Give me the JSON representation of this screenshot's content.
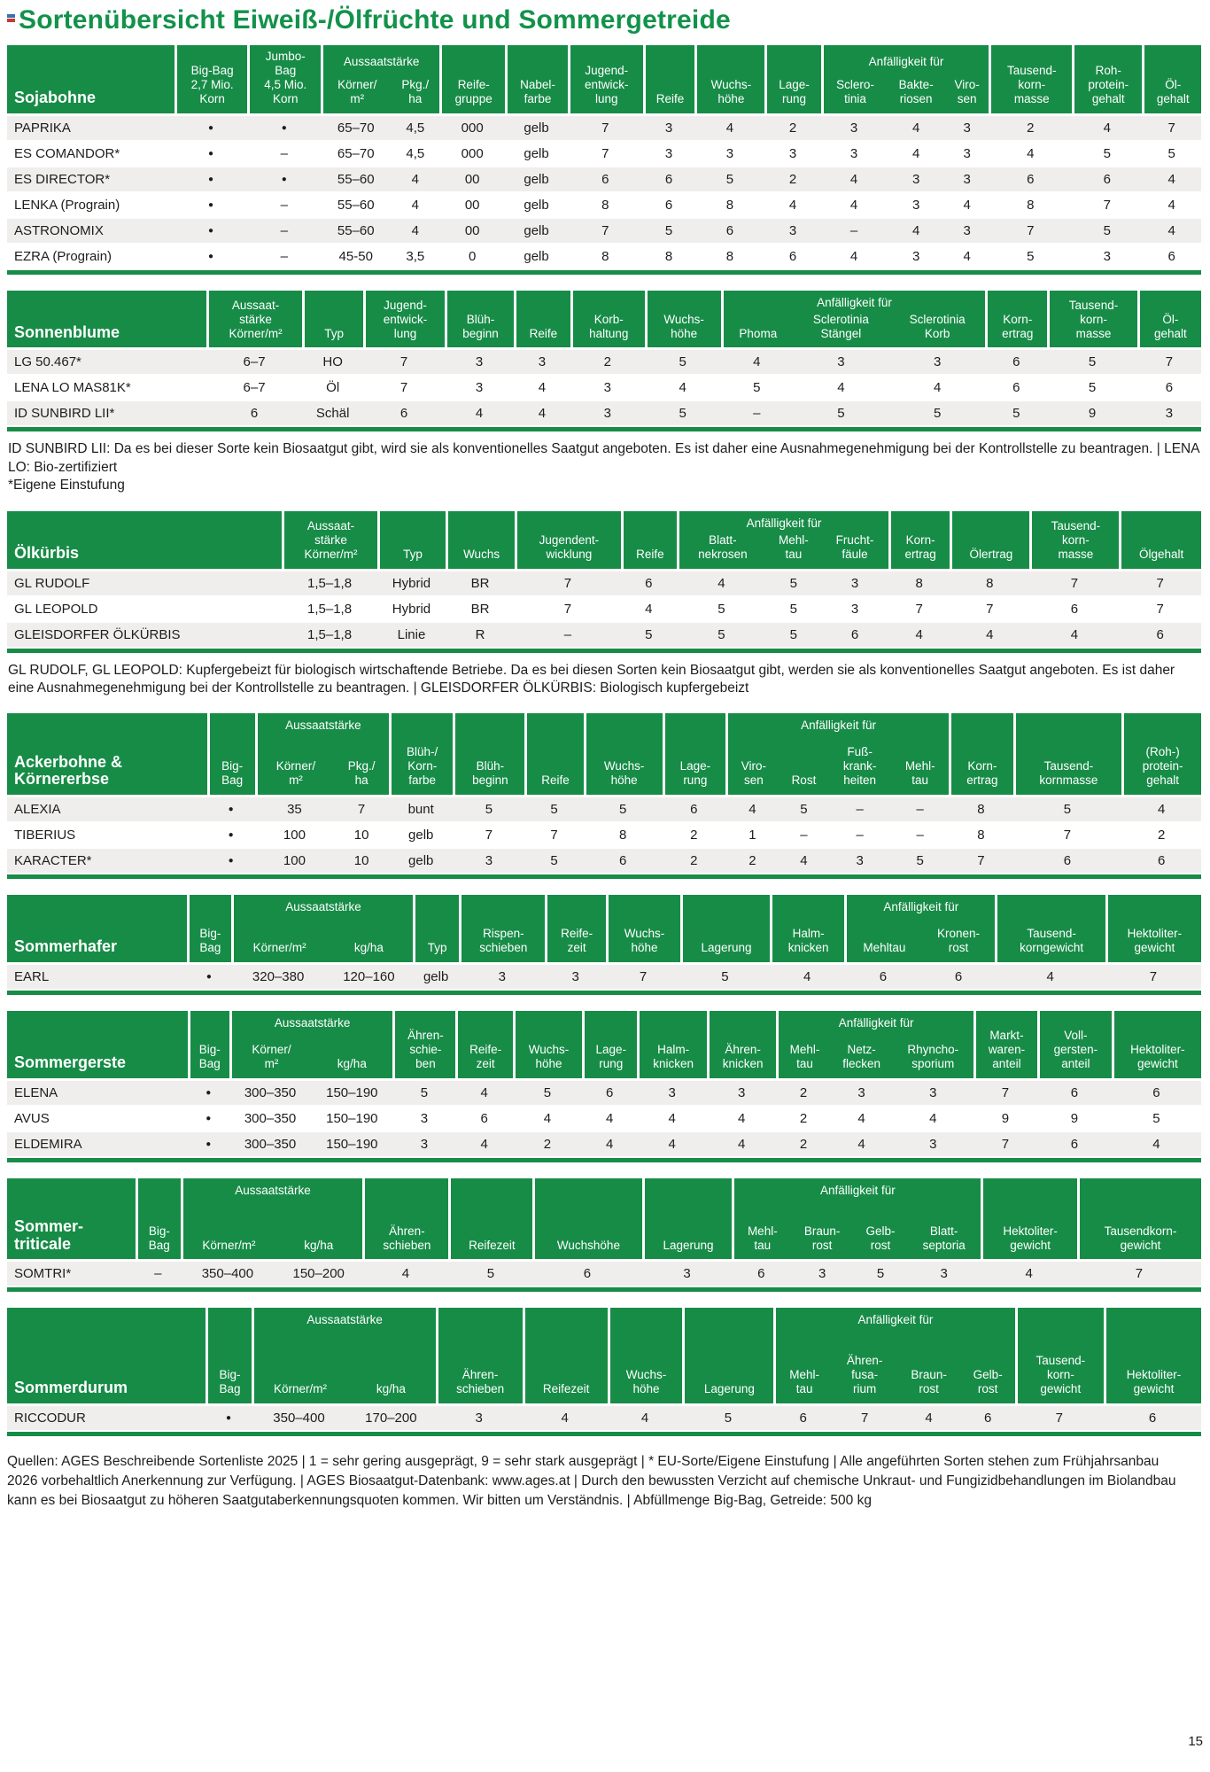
{
  "title": "Sortenübersicht Eiweiß-/Ölfrüchte und Sommergetreide",
  "colors": {
    "green": "#178c47",
    "title_green": "#12924a",
    "row_alt": "#efeeec"
  },
  "icons": {
    "corner_mark": "registration-mark-icon"
  },
  "tables": [
    {
      "id": "sojabohne",
      "name": "Sojabohne",
      "columns": [
        {
          "label": "Big-Bag\n2,7 Mio.\nKorn"
        },
        {
          "label": "Jumbo-\nBag\n4,5 Mio.\nKorn"
        },
        {
          "label": "Körner/\nm²",
          "group": "Aussaatstärke"
        },
        {
          "label": "Pkg./\nha",
          "group": "Aussaatstärke"
        },
        {
          "label": "Reife-\ngruppe"
        },
        {
          "label": "Nabel-\nfarbe"
        },
        {
          "label": "Jugend-\nentwick-\nlung"
        },
        {
          "label": "Reife"
        },
        {
          "label": "Wuchs-\nhöhe"
        },
        {
          "label": "Lage-\nrung"
        },
        {
          "label": "Sclero-\ntinia",
          "group": "Anfälligkeit für"
        },
        {
          "label": "Bakte-\nriosen",
          "group": "Anfälligkeit für"
        },
        {
          "label": "Viro-\nsen",
          "group": "Anfälligkeit für"
        },
        {
          "label": "Tausend-\nkorn-\nmasse"
        },
        {
          "label": "Roh-\nprotein-\ngehalt"
        },
        {
          "label": "Öl-\ngehalt"
        }
      ],
      "rows": [
        [
          "PAPRIKA",
          "●",
          "●",
          "65–70",
          "4,5",
          "000",
          "gelb",
          "7",
          "3",
          "4",
          "2",
          "3",
          "4",
          "3",
          "2",
          "4",
          "7"
        ],
        [
          "ES COMANDOR*",
          "●",
          "–",
          "65–70",
          "4,5",
          "000",
          "gelb",
          "7",
          "3",
          "3",
          "3",
          "3",
          "4",
          "3",
          "4",
          "5",
          "5"
        ],
        [
          "ES DIRECTOR*",
          "●",
          "●",
          "55–60",
          "4",
          "00",
          "gelb",
          "6",
          "6",
          "5",
          "2",
          "4",
          "3",
          "3",
          "6",
          "6",
          "4"
        ],
        [
          "LENKA (Prograin)",
          "●",
          "–",
          "55–60",
          "4",
          "00",
          "gelb",
          "8",
          "6",
          "8",
          "4",
          "4",
          "3",
          "4",
          "8",
          "7",
          "4"
        ],
        [
          "ASTRONOMIX",
          "●",
          "–",
          "55–60",
          "4",
          "00",
          "gelb",
          "7",
          "5",
          "6",
          "3",
          "–",
          "4",
          "3",
          "7",
          "5",
          "4"
        ],
        [
          "EZRA (Prograin)",
          "●",
          "–",
          "45-50",
          "3,5",
          "0",
          "gelb",
          "8",
          "8",
          "8",
          "6",
          "4",
          "3",
          "4",
          "5",
          "3",
          "6"
        ]
      ]
    },
    {
      "id": "sonnenblume",
      "name": "Sonnenblume",
      "columns": [
        {
          "label": "Aussaat-\nstärke\nKörner/m²"
        },
        {
          "label": "Typ"
        },
        {
          "label": "Jugend-\nentwick-\nlung"
        },
        {
          "label": "Blüh-\nbeginn"
        },
        {
          "label": "Reife"
        },
        {
          "label": "Korb-\nhaltung"
        },
        {
          "label": "Wuchs-\nhöhe"
        },
        {
          "label": "Phoma",
          "group": "Anfälligkeit für"
        },
        {
          "label": "Sclerotinia\nStängel",
          "group": "Anfälligkeit für"
        },
        {
          "label": "Sclerotinia\nKorb",
          "group": "Anfälligkeit für"
        },
        {
          "label": "Korn-\nertrag"
        },
        {
          "label": "Tausend-\nkorn-\nmasse"
        },
        {
          "label": "Öl-\ngehalt"
        }
      ],
      "rows": [
        [
          "LG 50.467*",
          "6–7",
          "HO",
          "7",
          "3",
          "3",
          "2",
          "5",
          "4",
          "3",
          "3",
          "6",
          "5",
          "7"
        ],
        [
          "LENA LO MAS81K*",
          "6–7",
          "Öl",
          "7",
          "3",
          "4",
          "3",
          "4",
          "5",
          "4",
          "4",
          "6",
          "5",
          "6"
        ],
        [
          "ID SUNBIRD LII*",
          "6",
          "Schäl",
          "6",
          "4",
          "4",
          "3",
          "5",
          "–",
          "5",
          "5",
          "5",
          "9",
          "3"
        ]
      ],
      "note": "ID SUNBIRD LII: Da es bei dieser Sorte kein Biosaatgut gibt, wird sie als konventionelles Saatgut angeboten. Es ist daher eine Ausnahmegenehmigung bei der Kontrollstelle zu beantragen. | LENA LO: Bio-zertifiziert\n*Eigene Einstufung"
    },
    {
      "id": "oelkuerbis",
      "name": "Ölkürbis",
      "columns": [
        {
          "label": "Aussaat-\nstärke\nKörner/m²"
        },
        {
          "label": "Typ"
        },
        {
          "label": "Wuchs"
        },
        {
          "label": "Jugendent-\nwicklung"
        },
        {
          "label": "Reife"
        },
        {
          "label": "Blatt-\nnekrosen",
          "group": "Anfälligkeit für"
        },
        {
          "label": "Mehl-\ntau",
          "group": "Anfälligkeit für"
        },
        {
          "label": "Frucht-\nfäule",
          "group": "Anfälligkeit für"
        },
        {
          "label": "Korn-\nertrag"
        },
        {
          "label": "Ölertrag"
        },
        {
          "label": "Tausend-\nkorn-\nmasse"
        },
        {
          "label": "Ölgehalt"
        }
      ],
      "rows": [
        [
          "GL RUDOLF",
          "1,5–1,8",
          "Hybrid",
          "BR",
          "7",
          "6",
          "4",
          "5",
          "3",
          "8",
          "8",
          "7",
          "7"
        ],
        [
          "GL LEOPOLD",
          "1,5–1,8",
          "Hybrid",
          "BR",
          "7",
          "4",
          "5",
          "5",
          "3",
          "7",
          "7",
          "6",
          "7"
        ],
        [
          "GLEISDORFER ÖLKÜRBIS",
          "1,5–1,8",
          "Linie",
          "R",
          "–",
          "5",
          "5",
          "5",
          "6",
          "4",
          "4",
          "4",
          "6"
        ]
      ],
      "note": "GL RUDOLF, GL LEOPOLD: Kupfergebeizt für biologisch wirtschaftende Betriebe. Da es bei diesen Sorten kein Biosaatgut gibt, werden sie als konventionelles Saatgut angeboten. Es ist daher eine Ausnahmegenehmigung bei der Kontrollstelle zu beantragen. | GLEISDORFER ÖLKÜRBIS: Biologisch kupfergebeizt"
    },
    {
      "id": "ackerbohne",
      "name": "Ackerbohne &\nKörnererbse",
      "columns": [
        {
          "label": "Big-\nBag"
        },
        {
          "label": "Körner/\nm²",
          "group": "Aussaatstärke"
        },
        {
          "label": "Pkg./\nha",
          "group": "Aussaatstärke"
        },
        {
          "label": "Blüh-/\nKorn-\nfarbe"
        },
        {
          "label": "Blüh-\nbeginn"
        },
        {
          "label": "Reife"
        },
        {
          "label": "Wuchs-\nhöhe"
        },
        {
          "label": "Lage-\nrung"
        },
        {
          "label": "Viro-\nsen",
          "group": "Anfälligkeit für"
        },
        {
          "label": "Rost",
          "group": "Anfälligkeit für"
        },
        {
          "label": "Fuß-\nkrank-\nheiten",
          "group": "Anfälligkeit für"
        },
        {
          "label": "Mehl-\ntau",
          "group": "Anfälligkeit für"
        },
        {
          "label": "Korn-\nertrag"
        },
        {
          "label": "Tausend-\nkornmasse"
        },
        {
          "label": "(Roh-)\nprotein-\ngehalt"
        }
      ],
      "rows": [
        [
          "ALEXIA",
          "●",
          "35",
          "7",
          "bunt",
          "5",
          "5",
          "5",
          "6",
          "4",
          "5",
          "–",
          "–",
          "8",
          "5",
          "4"
        ],
        [
          "TIBERIUS",
          "●",
          "100",
          "10",
          "gelb",
          "7",
          "7",
          "8",
          "2",
          "1",
          "–",
          "–",
          "–",
          "8",
          "7",
          "2"
        ],
        [
          "KARACTER*",
          "●",
          "100",
          "10",
          "gelb",
          "3",
          "5",
          "6",
          "2",
          "2",
          "4",
          "3",
          "5",
          "7",
          "6",
          "6"
        ]
      ]
    },
    {
      "id": "sommerhafer",
      "name": "Sommerhafer",
      "columns": [
        {
          "label": "Big-\nBag"
        },
        {
          "label": "Körner/m²",
          "group": "Aussaatstärke"
        },
        {
          "label": "kg/ha",
          "group": "Aussaatstärke"
        },
        {
          "label": "Typ"
        },
        {
          "label": "Rispen-\nschieben"
        },
        {
          "label": "Reife-\nzeit"
        },
        {
          "label": "Wuchs-\nhöhe"
        },
        {
          "label": "Lagerung"
        },
        {
          "label": "Halm-\nknicken"
        },
        {
          "label": "Mehltau",
          "group": "Anfälligkeit für"
        },
        {
          "label": "Kronen-\nrost",
          "group": "Anfälligkeit für"
        },
        {
          "label": "Tausend-\nkorngewicht"
        },
        {
          "label": "Hektoliter-\ngewicht"
        }
      ],
      "rows": [
        [
          "EARL",
          "●",
          "320–380",
          "120–160",
          "gelb",
          "3",
          "3",
          "7",
          "5",
          "4",
          "6",
          "6",
          "4",
          "7"
        ]
      ]
    },
    {
      "id": "sommergerste",
      "name": "Sommergerste",
      "columns": [
        {
          "label": "Big-\nBag"
        },
        {
          "label": "Körner/\nm²",
          "group": "Aussaatstärke"
        },
        {
          "label": "kg/ha",
          "group": "Aussaatstärke"
        },
        {
          "label": "Ähren-\nschie-\nben"
        },
        {
          "label": "Reife-\nzeit"
        },
        {
          "label": "Wuchs-\nhöhe"
        },
        {
          "label": "Lage-\nrung"
        },
        {
          "label": "Halm-\nknicken"
        },
        {
          "label": "Ähren-\nknicken"
        },
        {
          "label": "Mehl-\ntau",
          "group": "Anfälligkeit für"
        },
        {
          "label": "Netz-\nflecken",
          "group": "Anfälligkeit für"
        },
        {
          "label": "Rhyncho-\nsporium",
          "group": "Anfälligkeit für"
        },
        {
          "label": "Markt-\nwaren-\nanteil"
        },
        {
          "label": "Voll-\ngersten-\nanteil"
        },
        {
          "label": "Hektoliter-\ngewicht"
        }
      ],
      "rows": [
        [
          "ELENA",
          "●",
          "300–350",
          "150–190",
          "5",
          "4",
          "5",
          "6",
          "3",
          "3",
          "2",
          "3",
          "3",
          "7",
          "6",
          "6"
        ],
        [
          "AVUS",
          "●",
          "300–350",
          "150–190",
          "3",
          "6",
          "4",
          "4",
          "4",
          "4",
          "2",
          "4",
          "4",
          "9",
          "9",
          "5"
        ],
        [
          "ELDEMIRA",
          "●",
          "300–350",
          "150–190",
          "3",
          "4",
          "2",
          "4",
          "4",
          "4",
          "2",
          "4",
          "3",
          "7",
          "6",
          "4"
        ]
      ]
    },
    {
      "id": "sommertriticale",
      "name": "Sommer-\ntriticale",
      "columns": [
        {
          "label": "Big-\nBag"
        },
        {
          "label": "Körner/m²",
          "group": "Aussaatstärke"
        },
        {
          "label": "kg/ha",
          "group": "Aussaatstärke"
        },
        {
          "label": "Ähren-\nschieben"
        },
        {
          "label": "Reifezeit"
        },
        {
          "label": "Wuchshöhe"
        },
        {
          "label": "Lagerung"
        },
        {
          "label": "Mehl-\ntau",
          "group": "Anfälligkeit für"
        },
        {
          "label": "Braun-\nrost",
          "group": "Anfälligkeit für"
        },
        {
          "label": "Gelb-\nrost",
          "group": "Anfälligkeit für"
        },
        {
          "label": "Blatt-\nseptoria",
          "group": "Anfälligkeit für"
        },
        {
          "label": "Hektoliter-\ngewicht"
        },
        {
          "label": "Tausendkorn-\ngewicht"
        }
      ],
      "rows": [
        [
          "SOMTRI*",
          "–",
          "350–400",
          "150–200",
          "4",
          "5",
          "6",
          "3",
          "6",
          "3",
          "5",
          "3",
          "4",
          "7"
        ]
      ]
    },
    {
      "id": "sommerdurum",
      "name": "Sommerdurum",
      "columns": [
        {
          "label": "Big-\nBag"
        },
        {
          "label": "Körner/m²",
          "group": "Aussaatstärke"
        },
        {
          "label": "kg/ha",
          "group": "Aussaatstärke"
        },
        {
          "label": "Ähren-\nschieben"
        },
        {
          "label": "Reifezeit"
        },
        {
          "label": "Wuchs-\nhöhe"
        },
        {
          "label": "Lagerung"
        },
        {
          "label": "Mehl-\ntau",
          "group": "Anfälligkeit für"
        },
        {
          "label": "Ähren-\nfusa-\nrium",
          "group": "Anfälligkeit für"
        },
        {
          "label": "Braun-\nrost",
          "group": "Anfälligkeit für"
        },
        {
          "label": "Gelb-\nrost",
          "group": "Anfälligkeit für"
        },
        {
          "label": "Tausend-\nkorn-\ngewicht"
        },
        {
          "label": "Hektoliter-\ngewicht"
        }
      ],
      "rows": [
        [
          "RICCODUR",
          "●",
          "350–400",
          "170–200",
          "3",
          "4",
          "4",
          "5",
          "6",
          "7",
          "4",
          "6",
          "7",
          "6"
        ]
      ]
    }
  ],
  "footer": {
    "text": "Quellen: AGES Beschreibende Sortenliste 2025 | 1 = sehr gering ausgeprägt, 9 = sehr stark ausgeprägt | * EU-Sorte/Eigene Einstufung | Alle angeführten Sorten stehen zum Frühjahrsanbau 2026 vorbehaltlich Anerkennung zur Verfügung. | AGES Biosaatgut-Datenbank: www.ages.at | Durch den bewussten Verzicht auf chemische Unkraut- und Fungizidbehandlungen im Biolandbau kann es bei Biosaatgut zu höheren Saatgutaberkennungsquoten kommen. Wir bitten um Verständnis. | Abfüllmenge Big-Bag, Getreide: 500 kg",
    "page_number": "15"
  }
}
